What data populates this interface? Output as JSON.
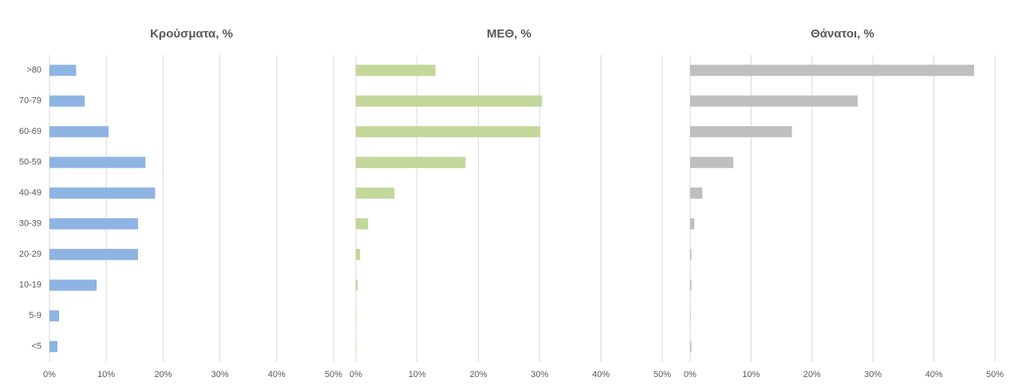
{
  "chart_data": [
    {
      "type": "bar",
      "orientation": "horizontal",
      "title": "Κρούσματα, %",
      "categories": [
        ">80",
        "70-79",
        "60-69",
        "50-59",
        "40-49",
        "30-39",
        "20-29",
        "10-19",
        "5-9",
        "<5"
      ],
      "values": [
        4.7,
        6.2,
        10.4,
        16.9,
        18.6,
        15.6,
        15.6,
        8.3,
        1.7,
        1.4
      ],
      "color": "#8eb4e3",
      "xlim": [
        0,
        50
      ],
      "xticks": [
        {
          "value": 0,
          "label": "0%"
        },
        {
          "value": 10,
          "label": "10%"
        },
        {
          "value": 20,
          "label": "20%"
        },
        {
          "value": 30,
          "label": "30%"
        },
        {
          "value": 40,
          "label": "40%"
        },
        {
          "value": 50,
          "label": "50%"
        }
      ],
      "grid": true
    },
    {
      "type": "bar",
      "orientation": "horizontal",
      "title": "ΜΕΘ, %",
      "values": [
        13.0,
        30.4,
        30.1,
        17.9,
        6.3,
        2.0,
        0.7,
        0.3,
        0.05,
        0.05
      ],
      "color": "#c4d79b",
      "xlim": [
        0,
        50
      ],
      "xticks": [
        {
          "value": 0,
          "label": "0%"
        },
        {
          "value": 10,
          "label": "10%"
        },
        {
          "value": 20,
          "label": "20%"
        },
        {
          "value": 30,
          "label": "30%"
        },
        {
          "value": 40,
          "label": "40%"
        },
        {
          "value": 50,
          "label": "50%"
        }
      ],
      "grid": true
    },
    {
      "type": "bar",
      "orientation": "horizontal",
      "title": "Θάνατοι, %",
      "values": [
        46.6,
        27.5,
        16.7,
        7.1,
        2.0,
        0.7,
        0.2,
        0.2,
        0.05,
        0.2
      ],
      "color": "#bfbfbf",
      "xlim": [
        0,
        50
      ],
      "xticks": [
        {
          "value": 0,
          "label": "0%"
        },
        {
          "value": 10,
          "label": "10%"
        },
        {
          "value": 20,
          "label": "20%"
        },
        {
          "value": 30,
          "label": "30%"
        },
        {
          "value": 40,
          "label": "40%"
        },
        {
          "value": 50,
          "label": "50%"
        }
      ],
      "grid": true
    }
  ]
}
